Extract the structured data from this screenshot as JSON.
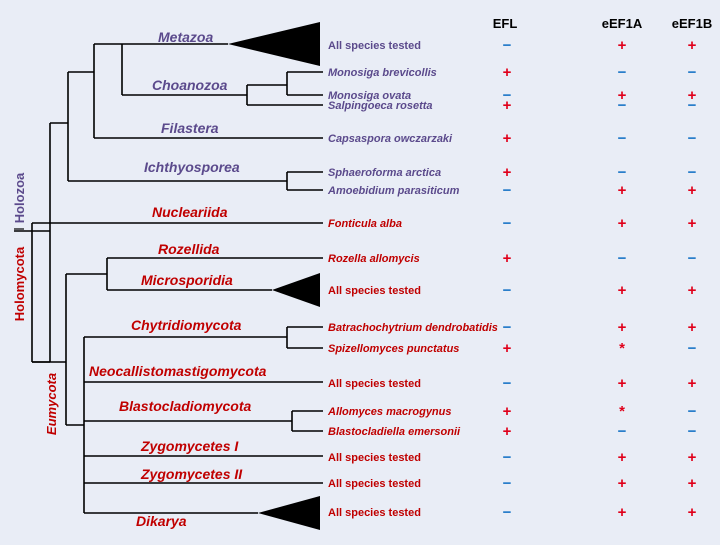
{
  "colors": {
    "background": "#e9edf6",
    "holozoa": "#5b4a8c",
    "holomycota": "#c00000",
    "plus_red": "#e0001a",
    "minus_blue": "#1f78c8",
    "line": "#000000"
  },
  "columns": {
    "efl": "EFL",
    "eef1a": "eEF1A",
    "eef1b": "eEF1B"
  },
  "side_labels": {
    "holozoa": "Holozoa",
    "holomycota": "Holomycota",
    "eumycota": "Eumycota"
  },
  "clades": {
    "metazoa": "Metazoa",
    "choanozoa": "Choanozoa",
    "filastera": "Filastera",
    "ichthyosporea": "Ichthyosporea",
    "nucleariida": "Nucleariida",
    "rozellida": "Rozellida",
    "microsporidia": "Microsporidia",
    "chytridiomycota": "Chytridiomycota",
    "neocallistomastigomycota": "Neocallistomastigomycota",
    "blastocladiomycota": "Blastocladiomycota",
    "zygomycetes1": "Zygomycetes I",
    "zygomycetes2": "Zygomycetes II",
    "dikarya": "Dikarya"
  },
  "rows": [
    {
      "id": "metazoa",
      "label": "All species tested",
      "italic": false,
      "group": "holozoa",
      "efl": "−",
      "eef1a": "+",
      "eef1b": "+"
    },
    {
      "id": "monosiga-brevicollis",
      "label": "Monosiga brevicollis",
      "italic": true,
      "group": "holozoa",
      "efl": "+",
      "eef1a": "−",
      "eef1b": "−"
    },
    {
      "id": "monosiga-ovata",
      "label": "Monosiga ovata",
      "italic": true,
      "group": "holozoa",
      "efl": "−",
      "eef1a": "+",
      "eef1b": "+"
    },
    {
      "id": "salpingoeca-rosetta",
      "label": "Salpingoeca rosetta",
      "italic": true,
      "group": "holozoa",
      "efl": "+",
      "eef1a": "−",
      "eef1b": "−"
    },
    {
      "id": "capsaspora-owczarzaki",
      "label": "Capsaspora owczarzaki",
      "italic": true,
      "group": "holozoa",
      "efl": "+",
      "eef1a": "−",
      "eef1b": "−"
    },
    {
      "id": "sphaeroforma-arctica",
      "label": "Sphaeroforma arctica",
      "italic": true,
      "group": "holozoa",
      "efl": "+",
      "eef1a": "−",
      "eef1b": "−"
    },
    {
      "id": "amoebidium-parasiticum",
      "label": "Amoebidium parasiticum",
      "italic": true,
      "group": "holozoa",
      "efl": "−",
      "eef1a": "+",
      "eef1b": "+"
    },
    {
      "id": "fonticula-alba",
      "label": "Fonticula alba",
      "italic": true,
      "group": "holomycota",
      "efl": "−",
      "eef1a": "+",
      "eef1b": "+"
    },
    {
      "id": "rozella-allomycis",
      "label": "Rozella allomycis",
      "italic": true,
      "group": "holomycota",
      "efl": "+",
      "eef1a": "−",
      "eef1b": "−"
    },
    {
      "id": "microsporidia",
      "label": "All species tested",
      "italic": false,
      "group": "holomycota",
      "efl": "−",
      "eef1a": "+",
      "eef1b": "+"
    },
    {
      "id": "batrachochytrium-dendrobatidis",
      "label": "Batrachochytrium dendrobatidis",
      "italic": true,
      "group": "holomycota",
      "efl": "−",
      "eef1a": "+",
      "eef1b": "+"
    },
    {
      "id": "spizellomyces-punctatus",
      "label": "Spizellomyces punctatus",
      "italic": true,
      "group": "holomycota",
      "efl": "+",
      "eef1a": "*",
      "eef1b": "−"
    },
    {
      "id": "neocallistomastigomycota",
      "label": "All species tested",
      "italic": false,
      "group": "holomycota",
      "efl": "−",
      "eef1a": "+",
      "eef1b": "+"
    },
    {
      "id": "allomyces-macrogynus",
      "label": "Allomyces macrogynus",
      "italic": true,
      "group": "holomycota",
      "efl": "+",
      "eef1a": "*",
      "eef1b": "−"
    },
    {
      "id": "blastocladiella-emersonii",
      "label": "Blastocladiella emersonii",
      "italic": true,
      "group": "holomycota",
      "efl": "+",
      "eef1a": "−",
      "eef1b": "−"
    },
    {
      "id": "zygomycetes-1",
      "label": "All species tested",
      "italic": false,
      "group": "holomycota",
      "efl": "−",
      "eef1a": "+",
      "eef1b": "+"
    },
    {
      "id": "zygomycetes-2",
      "label": "All species tested",
      "italic": false,
      "group": "holomycota",
      "efl": "−",
      "eef1a": "+",
      "eef1b": "+"
    },
    {
      "id": "dikarya",
      "label": "All species tested",
      "italic": false,
      "group": "holomycota",
      "efl": "−",
      "eef1a": "+",
      "eef1b": "+"
    }
  ]
}
